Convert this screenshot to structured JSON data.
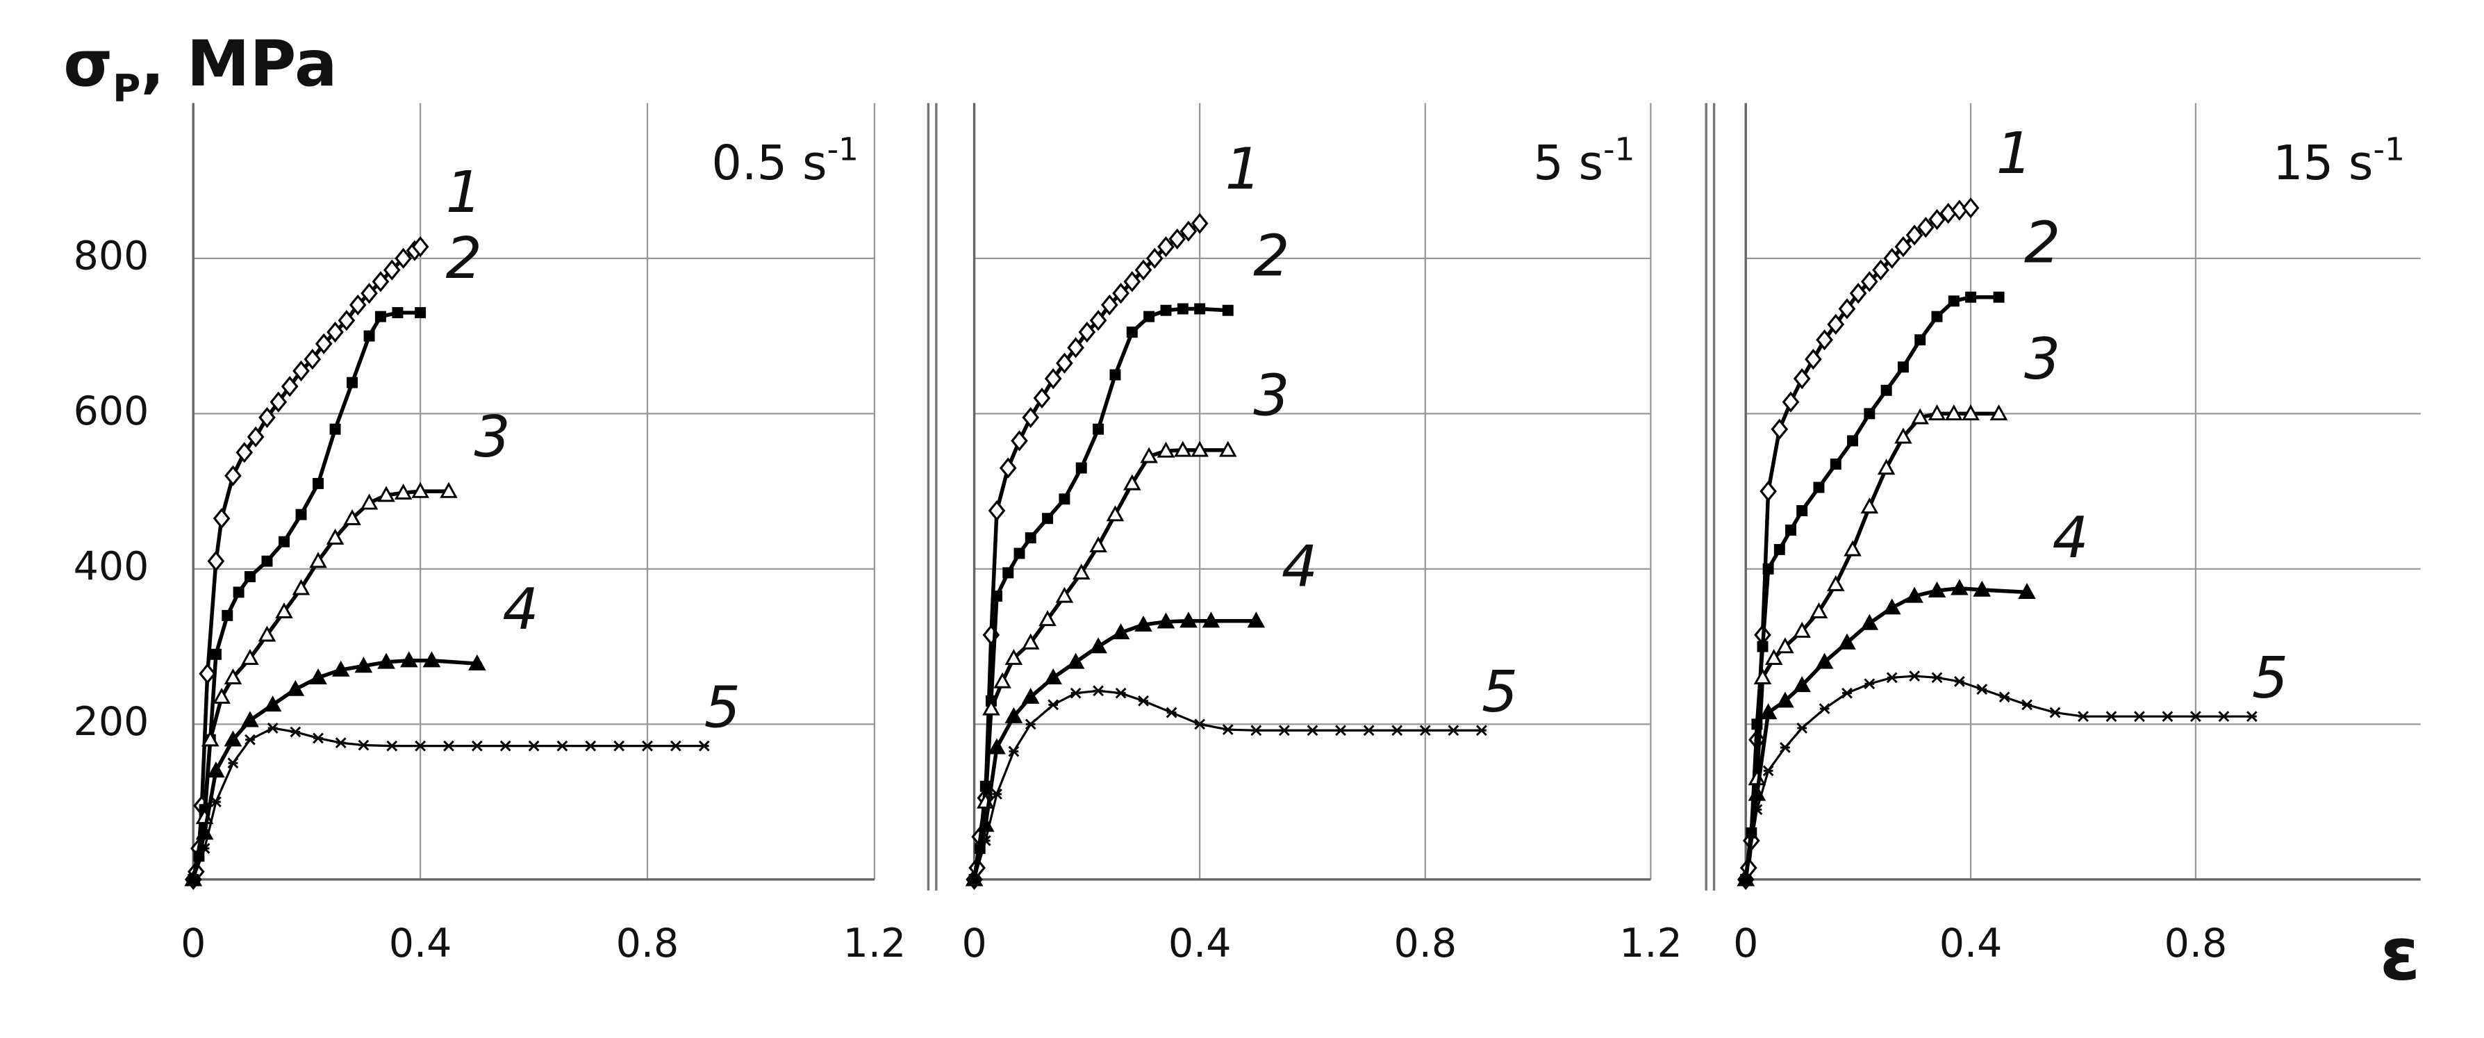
{
  "chart_data": [
    {
      "type": "line",
      "ylabel": "σ",
      "ylabel_sub": "P",
      "ylabel_rest": ", MPa",
      "annotation": "0.5 s",
      "annotation_sup": "-1",
      "xlim": [
        0,
        1.2
      ],
      "xticks": [
        0,
        0.4,
        0.8,
        1.2
      ],
      "ylim": [
        0,
        1000
      ],
      "yticks": [
        200,
        400,
        600,
        800
      ],
      "grid": true,
      "show_ytick_labels": true,
      "series": [
        {
          "name": "1",
          "marker": "diamond-open",
          "color": "#000000",
          "x": [
            0,
            0.005,
            0.01,
            0.015,
            0.025,
            0.04,
            0.05,
            0.07,
            0.09,
            0.11,
            0.13,
            0.15,
            0.17,
            0.19,
            0.21,
            0.23,
            0.25,
            0.27,
            0.29,
            0.31,
            0.33,
            0.35,
            0.37,
            0.39,
            0.4
          ],
          "values": [
            0,
            10,
            40,
            95,
            265,
            410,
            465,
            520,
            550,
            570,
            595,
            615,
            635,
            655,
            670,
            690,
            705,
            720,
            740,
            755,
            770,
            785,
            800,
            810,
            815
          ]
        },
        {
          "name": "2",
          "marker": "square-filled",
          "color": "#000000",
          "x": [
            0,
            0.01,
            0.02,
            0.03,
            0.04,
            0.06,
            0.08,
            0.1,
            0.13,
            0.16,
            0.19,
            0.22,
            0.25,
            0.28,
            0.31,
            0.33,
            0.36,
            0.4
          ],
          "values": [
            0,
            30,
            90,
            180,
            290,
            340,
            370,
            390,
            410,
            435,
            470,
            510,
            580,
            640,
            700,
            725,
            730,
            730
          ]
        },
        {
          "name": "3",
          "marker": "triangle-open",
          "color": "#000000",
          "x": [
            0,
            0.02,
            0.03,
            0.05,
            0.07,
            0.1,
            0.13,
            0.16,
            0.19,
            0.22,
            0.25,
            0.28,
            0.31,
            0.34,
            0.37,
            0.4,
            0.45
          ],
          "values": [
            0,
            80,
            180,
            235,
            260,
            285,
            315,
            345,
            375,
            410,
            440,
            465,
            485,
            495,
            498,
            500,
            500
          ]
        },
        {
          "name": "4",
          "marker": "triangle-filled",
          "color": "#000000",
          "x": [
            0,
            0.02,
            0.04,
            0.07,
            0.1,
            0.14,
            0.18,
            0.22,
            0.26,
            0.3,
            0.34,
            0.38,
            0.42,
            0.5
          ],
          "values": [
            0,
            60,
            140,
            180,
            205,
            225,
            245,
            260,
            270,
            275,
            280,
            282,
            282,
            278
          ]
        },
        {
          "name": "5",
          "marker": "star",
          "color": "#000000",
          "x": [
            0,
            0.02,
            0.04,
            0.07,
            0.1,
            0.14,
            0.18,
            0.22,
            0.26,
            0.3,
            0.35,
            0.4,
            0.45,
            0.5,
            0.55,
            0.6,
            0.65,
            0.7,
            0.75,
            0.8,
            0.85,
            0.9
          ],
          "values": [
            0,
            40,
            100,
            150,
            180,
            195,
            190,
            182,
            176,
            173,
            172,
            172,
            172,
            172,
            172,
            172,
            172,
            172,
            172,
            172,
            172,
            172
          ]
        }
      ]
    },
    {
      "type": "line",
      "annotation": "5 s",
      "annotation_sup": "-1",
      "xlim": [
        0,
        1.2
      ],
      "xticks": [
        0,
        0.4,
        0.8,
        1.2
      ],
      "ylim": [
        0,
        1000
      ],
      "yticks": [
        200,
        400,
        600,
        800
      ],
      "grid": true,
      "show_ytick_labels": false,
      "series": [
        {
          "name": "1",
          "marker": "diamond-open",
          "color": "#000000",
          "x": [
            0,
            0.005,
            0.01,
            0.02,
            0.03,
            0.04,
            0.06,
            0.08,
            0.1,
            0.12,
            0.14,
            0.16,
            0.18,
            0.2,
            0.22,
            0.24,
            0.26,
            0.28,
            0.3,
            0.32,
            0.34,
            0.36,
            0.38,
            0.4
          ],
          "values": [
            0,
            15,
            55,
            105,
            315,
            475,
            530,
            565,
            595,
            620,
            645,
            665,
            685,
            705,
            720,
            740,
            755,
            770,
            785,
            800,
            815,
            825,
            835,
            845
          ]
        },
        {
          "name": "2",
          "marker": "square-filled",
          "color": "#000000",
          "x": [
            0,
            0.01,
            0.02,
            0.03,
            0.04,
            0.06,
            0.08,
            0.1,
            0.13,
            0.16,
            0.19,
            0.22,
            0.25,
            0.28,
            0.31,
            0.34,
            0.37,
            0.4,
            0.45
          ],
          "values": [
            0,
            40,
            120,
            230,
            365,
            395,
            420,
            440,
            465,
            490,
            530,
            580,
            650,
            705,
            725,
            733,
            735,
            735,
            733
          ]
        },
        {
          "name": "3",
          "marker": "triangle-open",
          "color": "#000000",
          "x": [
            0,
            0.02,
            0.03,
            0.05,
            0.07,
            0.1,
            0.13,
            0.16,
            0.19,
            0.22,
            0.25,
            0.28,
            0.31,
            0.34,
            0.37,
            0.4,
            0.45
          ],
          "values": [
            0,
            100,
            220,
            255,
            285,
            305,
            335,
            365,
            395,
            430,
            470,
            510,
            545,
            552,
            553,
            553,
            553
          ]
        },
        {
          "name": "4",
          "marker": "triangle-filled",
          "color": "#000000",
          "x": [
            0,
            0.02,
            0.04,
            0.07,
            0.1,
            0.14,
            0.18,
            0.22,
            0.26,
            0.3,
            0.34,
            0.38,
            0.42,
            0.5
          ],
          "values": [
            0,
            70,
            170,
            210,
            235,
            260,
            280,
            300,
            318,
            328,
            332,
            333,
            333,
            333
          ]
        },
        {
          "name": "5",
          "marker": "star",
          "color": "#000000",
          "x": [
            0,
            0.02,
            0.04,
            0.07,
            0.1,
            0.14,
            0.18,
            0.22,
            0.26,
            0.3,
            0.35,
            0.4,
            0.45,
            0.5,
            0.55,
            0.6,
            0.65,
            0.7,
            0.75,
            0.8,
            0.85,
            0.9
          ],
          "values": [
            0,
            50,
            110,
            165,
            200,
            225,
            240,
            243,
            240,
            230,
            215,
            200,
            193,
            192,
            192,
            192,
            192,
            192,
            192,
            192,
            192,
            192
          ]
        }
      ]
    },
    {
      "type": "line",
      "annotation": "15 s",
      "annotation_sup": "-1",
      "xlabel": "ε",
      "xlim": [
        0,
        1.2
      ],
      "xticks": [
        0,
        0.4,
        0.8
      ],
      "ylim": [
        0,
        1000
      ],
      "yticks": [
        200,
        400,
        600,
        800
      ],
      "grid": true,
      "show_ytick_labels": false,
      "series": [
        {
          "name": "1",
          "marker": "diamond-open",
          "color": "#000000",
          "x": [
            0,
            0.005,
            0.01,
            0.02,
            0.03,
            0.04,
            0.06,
            0.08,
            0.1,
            0.12,
            0.14,
            0.16,
            0.18,
            0.2,
            0.22,
            0.24,
            0.26,
            0.28,
            0.3,
            0.32,
            0.34,
            0.36,
            0.38,
            0.4
          ],
          "values": [
            0,
            15,
            50,
            180,
            315,
            500,
            580,
            615,
            645,
            670,
            695,
            715,
            735,
            755,
            770,
            785,
            800,
            815,
            830,
            840,
            850,
            858,
            862,
            865
          ]
        },
        {
          "name": "2",
          "marker": "square-filled",
          "color": "#000000",
          "x": [
            0,
            0.01,
            0.02,
            0.03,
            0.04,
            0.06,
            0.08,
            0.1,
            0.13,
            0.16,
            0.19,
            0.22,
            0.25,
            0.28,
            0.31,
            0.34,
            0.37,
            0.4,
            0.45
          ],
          "values": [
            0,
            60,
            200,
            300,
            400,
            425,
            450,
            475,
            505,
            535,
            565,
            600,
            630,
            660,
            695,
            725,
            745,
            750,
            750
          ]
        },
        {
          "name": "3",
          "marker": "triangle-open",
          "color": "#000000",
          "x": [
            0,
            0.02,
            0.03,
            0.05,
            0.07,
            0.1,
            0.13,
            0.16,
            0.19,
            0.22,
            0.25,
            0.28,
            0.31,
            0.34,
            0.37,
            0.4,
            0.45
          ],
          "values": [
            0,
            130,
            260,
            285,
            300,
            320,
            345,
            380,
            425,
            480,
            530,
            570,
            595,
            600,
            600,
            600,
            600
          ]
        },
        {
          "name": "4",
          "marker": "triangle-filled",
          "color": "#000000",
          "x": [
            0,
            0.02,
            0.04,
            0.07,
            0.1,
            0.14,
            0.18,
            0.22,
            0.26,
            0.3,
            0.34,
            0.38,
            0.42,
            0.5
          ],
          "values": [
            0,
            110,
            215,
            230,
            250,
            280,
            305,
            330,
            350,
            365,
            372,
            375,
            373,
            370
          ]
        },
        {
          "name": "5",
          "marker": "star",
          "color": "#000000",
          "x": [
            0,
            0.02,
            0.04,
            0.07,
            0.1,
            0.14,
            0.18,
            0.22,
            0.26,
            0.3,
            0.34,
            0.38,
            0.42,
            0.46,
            0.5,
            0.55,
            0.6,
            0.65,
            0.7,
            0.75,
            0.8,
            0.85,
            0.9
          ],
          "values": [
            0,
            90,
            140,
            170,
            195,
            220,
            240,
            252,
            260,
            262,
            260,
            255,
            245,
            235,
            225,
            215,
            210,
            210,
            210,
            210,
            210,
            210,
            210
          ]
        }
      ]
    }
  ]
}
